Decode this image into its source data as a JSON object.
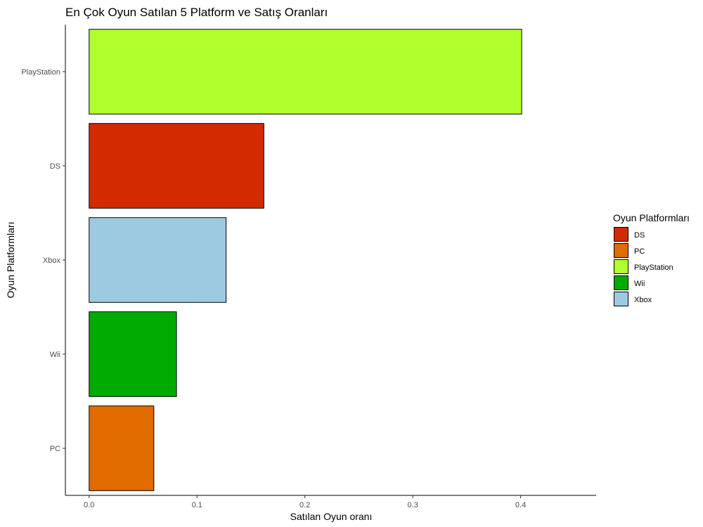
{
  "chart_data": {
    "type": "bar",
    "orientation": "horizontal",
    "title": "En Çok Oyun Satılan 5 Platform ve Satış Oranları",
    "xlabel": "Satılan Oyun oranı",
    "ylabel": "Oyun Platformları",
    "categories": [
      "PlayStation",
      "DS",
      "Xbox",
      "Wii",
      "PC"
    ],
    "values": [
      0.401,
      0.162,
      0.127,
      0.081,
      0.06
    ],
    "colors": [
      "#b2ff2e",
      "#d42a00",
      "#9ecae1",
      "#00aa00",
      "#e06c00"
    ],
    "xlim": [
      -0.022,
      0.47
    ],
    "xticks": [
      0,
      0.1,
      0.2,
      0.3,
      0.4
    ],
    "xtick_labels": [
      "0.0",
      "0.1",
      "0.2",
      "0.3",
      "0.4"
    ],
    "grid": false,
    "legend": {
      "title": "Oyun Platformları",
      "placement": "right",
      "items": [
        {
          "label": "DS",
          "color": "#d42a00"
        },
        {
          "label": "PC",
          "color": "#e06c00"
        },
        {
          "label": "PlayStation",
          "color": "#b2ff2e"
        },
        {
          "label": "Wii",
          "color": "#00aa00"
        },
        {
          "label": "Xbox",
          "color": "#9ecae1"
        }
      ]
    }
  }
}
